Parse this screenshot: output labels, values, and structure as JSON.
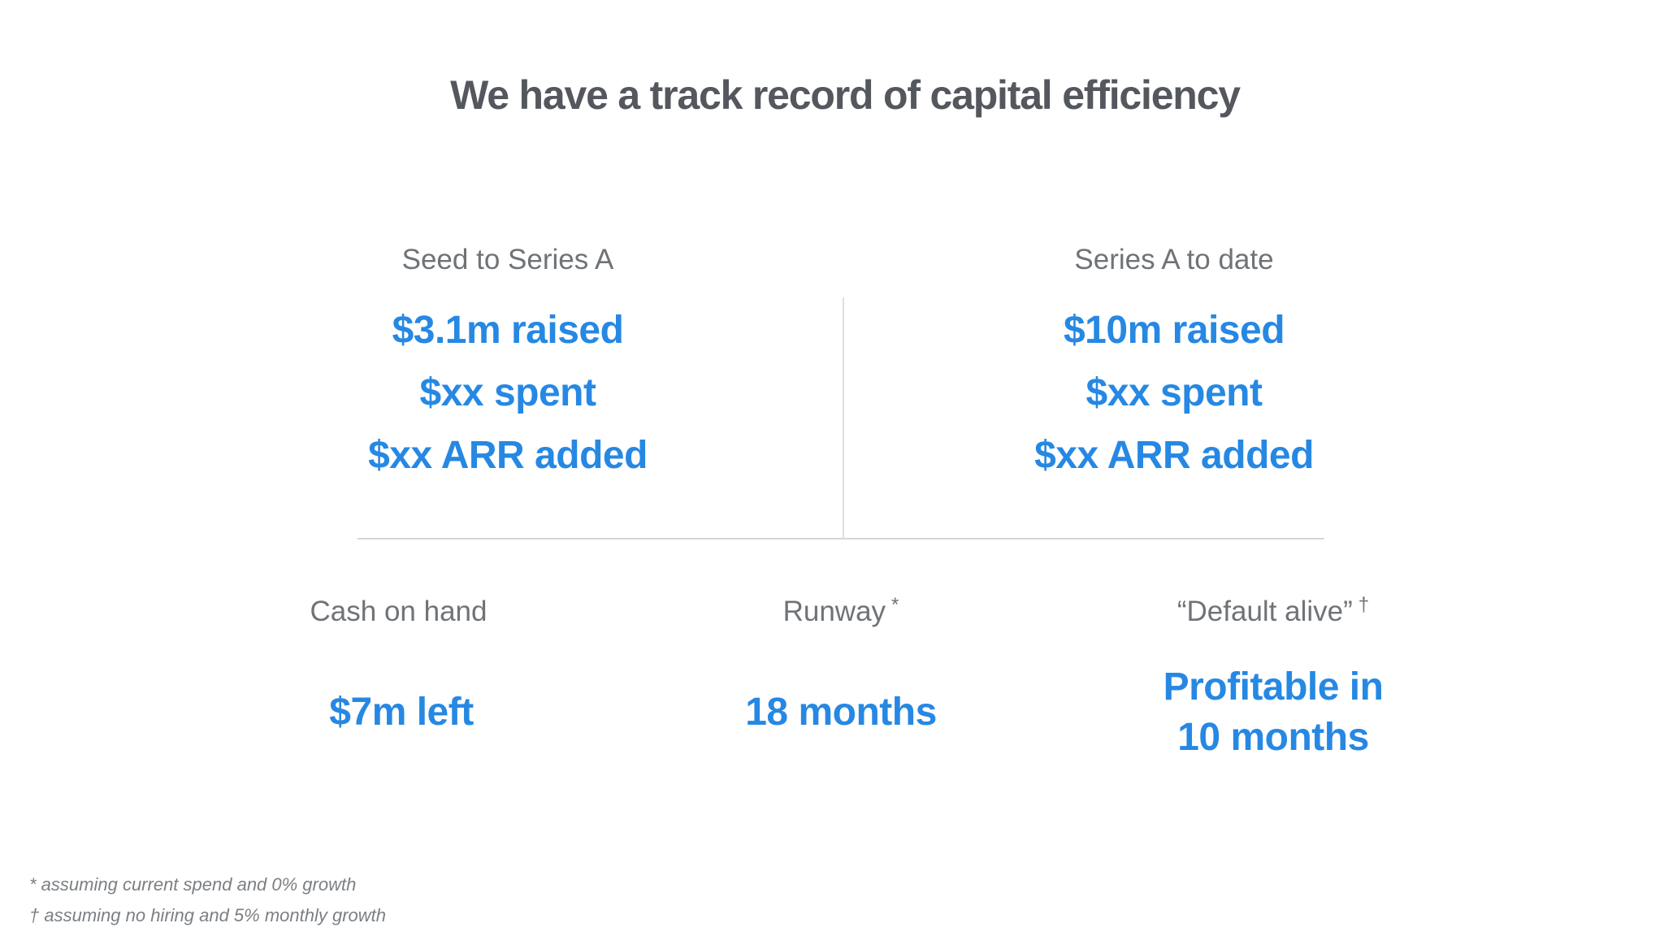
{
  "slide": {
    "title": "We have a track record of capital efficiency",
    "background_color": "#ffffff",
    "title_color": "#54585e",
    "accent_color": "#2688e3",
    "label_color": "#6f7377",
    "divider_color": "#d6d6d8",
    "footnote_color": "#7b7f83"
  },
  "funding_comparison": {
    "columns": [
      {
        "label": "Seed to Series A",
        "stats": [
          "$3.1m raised",
          "$xx spent",
          "$xx ARR added"
        ]
      },
      {
        "label": "Series A to date",
        "stats": [
          "$10m raised",
          "$xx spent",
          "$xx ARR added"
        ]
      }
    ]
  },
  "metrics": [
    {
      "label": "Cash on hand",
      "superscript": "",
      "value_lines": [
        "$7m left"
      ]
    },
    {
      "label": "Runway",
      "superscript": "*",
      "value_lines": [
        "18 months"
      ]
    },
    {
      "label": "“Default alive”",
      "superscript": "†",
      "value_lines": [
        "Profitable in",
        "10 months"
      ]
    }
  ],
  "footnotes": [
    "* assuming current spend and 0% growth",
    "† assuming no hiring and 5% monthly growth"
  ]
}
